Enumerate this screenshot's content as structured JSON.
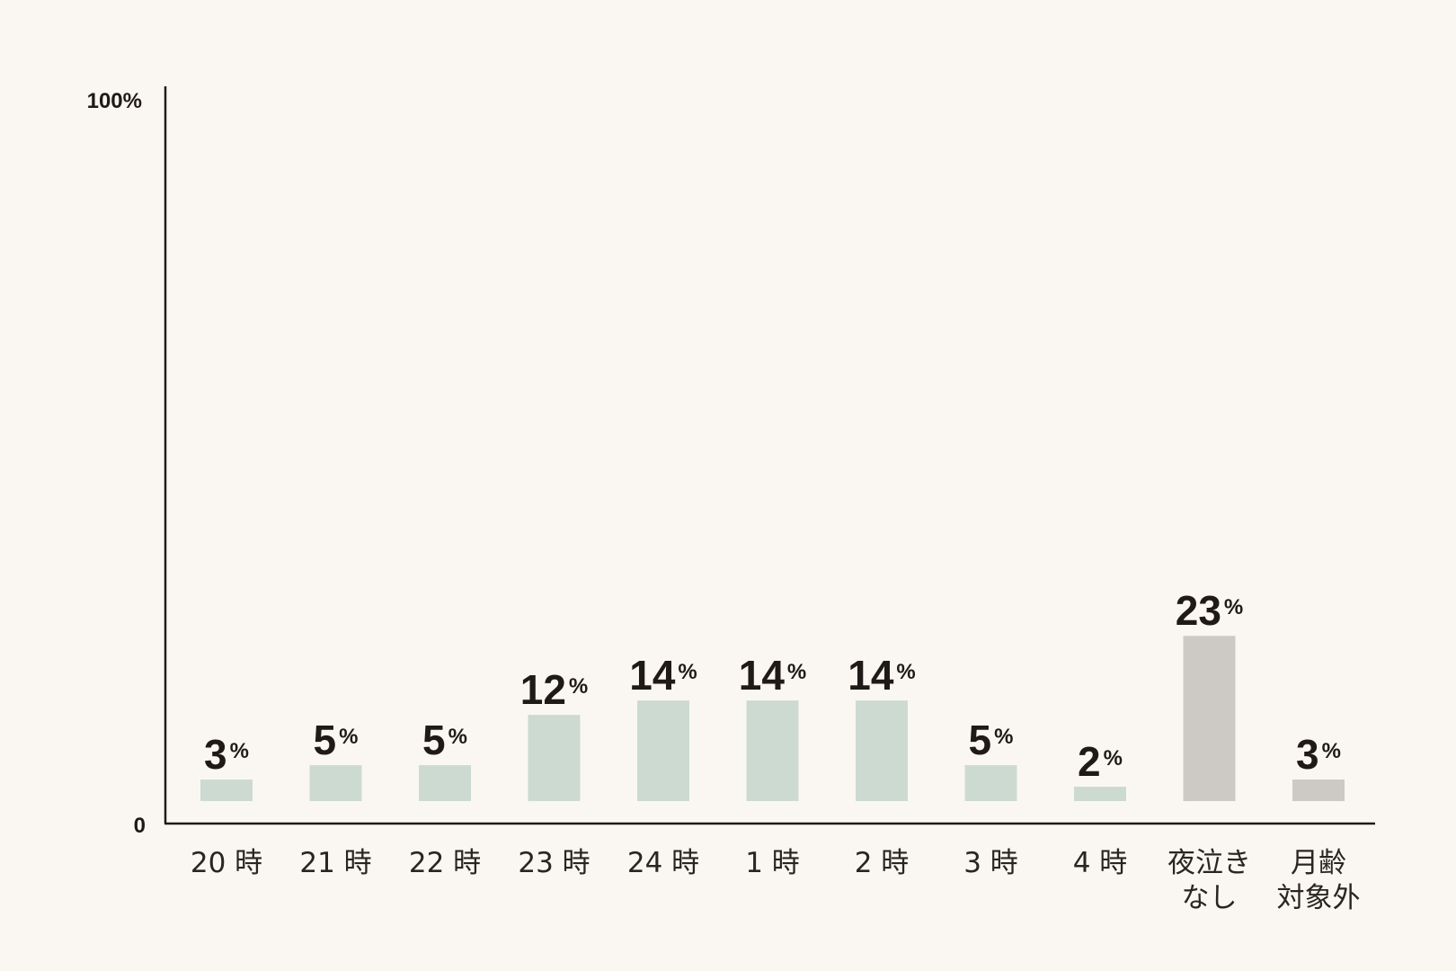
{
  "chart_data": {
    "type": "bar",
    "categories": [
      "20 時",
      "21 時",
      "22 時",
      "23 時",
      "24 時",
      "1 時",
      "2 時",
      "3 時",
      "4 時",
      "夜泣き\nなし",
      "月齢\n対象外"
    ],
    "values": [
      3,
      5,
      5,
      12,
      14,
      14,
      14,
      5,
      2,
      23,
      3
    ],
    "value_suffix": "%",
    "ylim": [
      0,
      100
    ],
    "y_tick_labels": [
      "0",
      "100%"
    ],
    "title": "",
    "xlabel": "",
    "ylabel": "",
    "grid": false,
    "legend": false,
    "bar_colors": [
      "#cddad2",
      "#cddad2",
      "#cddad2",
      "#cddad2",
      "#cddad2",
      "#cddad2",
      "#cddad2",
      "#cddad2",
      "#cddad2",
      "#cdc9c5",
      "#cdc9c5"
    ],
    "colors": {
      "background": "#faf7f2",
      "axis": "#1f1a17",
      "text": "#1f1a17"
    }
  }
}
